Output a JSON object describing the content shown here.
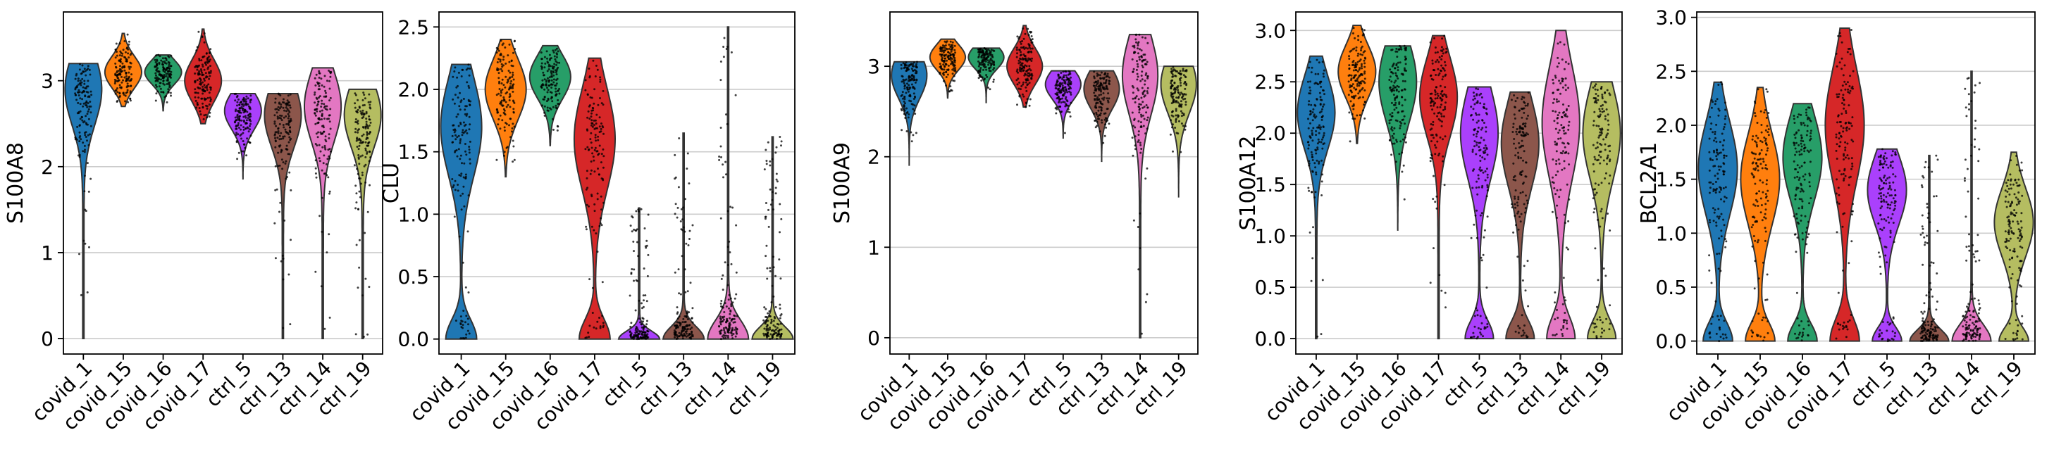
{
  "chart_data": [
    {
      "type": "violin",
      "ylabel": "S100A8",
      "yticks": [
        0,
        1,
        2,
        3
      ],
      "ytick_labels": [
        "0",
        "1",
        "2",
        "3"
      ],
      "ylim": [
        -0.18,
        3.8
      ],
      "grid": "horizontal",
      "categories": [
        "covid_1",
        "covid_15",
        "covid_16",
        "covid_17",
        "ctrl_5",
        "ctrl_13",
        "ctrl_14",
        "ctrl_19"
      ],
      "violins": [
        {
          "category": "covid_1",
          "color": "#1f77b4",
          "min": 0.0,
          "max": 3.2,
          "mode": 2.9,
          "shape": "body-tail"
        },
        {
          "category": "covid_15",
          "color": "#ff7f0e",
          "min": 2.7,
          "max": 3.55,
          "mode": 3.1,
          "shape": "body"
        },
        {
          "category": "covid_16",
          "color": "#279e68",
          "min": 2.65,
          "max": 3.3,
          "mode": 3.1,
          "shape": "body"
        },
        {
          "category": "covid_17",
          "color": "#d62728",
          "min": 2.5,
          "max": 3.6,
          "mode": 3.0,
          "shape": "body"
        },
        {
          "category": "ctrl_5",
          "color": "#aa40fc",
          "min": 1.85,
          "max": 2.85,
          "mode": 2.65,
          "shape": "body"
        },
        {
          "category": "ctrl_13",
          "color": "#8c564b",
          "min": 0.0,
          "max": 2.85,
          "mode": 2.6,
          "shape": "body-tail"
        },
        {
          "category": "ctrl_14",
          "color": "#e377c2",
          "min": 0.0,
          "max": 3.15,
          "mode": 2.7,
          "shape": "body-tail"
        },
        {
          "category": "ctrl_19",
          "color": "#b5bd61",
          "min": 0.0,
          "max": 2.9,
          "mode": 2.6,
          "shape": "body-tail"
        }
      ]
    },
    {
      "type": "violin",
      "ylabel": "CLU",
      "yticks": [
        0.0,
        0.5,
        1.0,
        1.5,
        2.0,
        2.5
      ],
      "ytick_labels": [
        "0.0",
        "0.5",
        "1.0",
        "1.5",
        "2.0",
        "2.5"
      ],
      "ylim": [
        -0.12,
        2.62
      ],
      "grid": "horizontal",
      "categories": [
        "covid_1",
        "covid_15",
        "covid_16",
        "covid_17",
        "ctrl_5",
        "ctrl_13",
        "ctrl_14",
        "ctrl_19"
      ],
      "violins": [
        {
          "category": "covid_1",
          "color": "#1f77b4",
          "min": 0.0,
          "max": 2.2,
          "mode": 1.7,
          "shape": "bimodal"
        },
        {
          "category": "covid_15",
          "color": "#ff7f0e",
          "min": 1.3,
          "max": 2.4,
          "mode": 2.0,
          "shape": "body"
        },
        {
          "category": "covid_16",
          "color": "#279e68",
          "min": 1.55,
          "max": 2.35,
          "mode": 2.1,
          "shape": "body"
        },
        {
          "category": "covid_17",
          "color": "#d62728",
          "min": 0.0,
          "max": 2.25,
          "mode": 1.6,
          "shape": "bimodal"
        },
        {
          "category": "ctrl_5",
          "color": "#aa40fc",
          "min": 0.0,
          "max": 1.05,
          "mode": 0.0,
          "shape": "base"
        },
        {
          "category": "ctrl_13",
          "color": "#8c564b",
          "min": 0.0,
          "max": 1.65,
          "mode": 0.0,
          "shape": "base"
        },
        {
          "category": "ctrl_14",
          "color": "#e377c2",
          "min": 0.0,
          "max": 2.5,
          "mode": 0.0,
          "shape": "base"
        },
        {
          "category": "ctrl_19",
          "color": "#b5bd61",
          "min": 0.0,
          "max": 1.62,
          "mode": 0.0,
          "shape": "base"
        }
      ]
    },
    {
      "type": "violin",
      "ylabel": "S100A9",
      "yticks": [
        0,
        1,
        2,
        3
      ],
      "ytick_labels": [
        "0",
        "1",
        "2",
        "3"
      ],
      "ylim": [
        -0.18,
        3.6
      ],
      "grid": "horizontal",
      "categories": [
        "covid_1",
        "covid_15",
        "covid_16",
        "covid_17",
        "ctrl_5",
        "ctrl_13",
        "ctrl_14",
        "ctrl_19"
      ],
      "violins": [
        {
          "category": "covid_1",
          "color": "#1f77b4",
          "min": 1.9,
          "max": 3.05,
          "mode": 2.9,
          "shape": "body"
        },
        {
          "category": "covid_15",
          "color": "#ff7f0e",
          "min": 2.65,
          "max": 3.3,
          "mode": 3.1,
          "shape": "body"
        },
        {
          "category": "covid_16",
          "color": "#279e68",
          "min": 2.6,
          "max": 3.2,
          "mode": 3.1,
          "shape": "body"
        },
        {
          "category": "covid_17",
          "color": "#d62728",
          "min": 2.55,
          "max": 3.45,
          "mode": 3.0,
          "shape": "body"
        },
        {
          "category": "ctrl_5",
          "color": "#aa40fc",
          "min": 2.2,
          "max": 2.95,
          "mode": 2.8,
          "shape": "body"
        },
        {
          "category": "ctrl_13",
          "color": "#8c564b",
          "min": 1.95,
          "max": 2.95,
          "mode": 2.75,
          "shape": "body"
        },
        {
          "category": "ctrl_14",
          "color": "#e377c2",
          "min": 0.0,
          "max": 3.35,
          "mode": 2.9,
          "shape": "body-tail"
        },
        {
          "category": "ctrl_19",
          "color": "#b5bd61",
          "min": 1.55,
          "max": 3.0,
          "mode": 2.8,
          "shape": "body"
        }
      ]
    },
    {
      "type": "violin",
      "ylabel": "S100A12",
      "yticks": [
        0.0,
        0.5,
        1.0,
        1.5,
        2.0,
        2.5,
        3.0
      ],
      "ytick_labels": [
        "0.0",
        "0.5",
        "1.0",
        "1.5",
        "2.0",
        "2.5",
        "3.0"
      ],
      "ylim": [
        -0.15,
        3.18
      ],
      "grid": "horizontal",
      "categories": [
        "covid_1",
        "covid_15",
        "covid_16",
        "covid_17",
        "ctrl_5",
        "ctrl_13",
        "ctrl_14",
        "ctrl_19"
      ],
      "violins": [
        {
          "category": "covid_1",
          "color": "#1f77b4",
          "min": 0.0,
          "max": 2.75,
          "mode": 2.2,
          "shape": "body-tail"
        },
        {
          "category": "covid_15",
          "color": "#ff7f0e",
          "min": 1.9,
          "max": 3.05,
          "mode": 2.6,
          "shape": "body"
        },
        {
          "category": "covid_16",
          "color": "#279e68",
          "min": 1.05,
          "max": 2.85,
          "mode": 2.5,
          "shape": "body"
        },
        {
          "category": "covid_17",
          "color": "#d62728",
          "min": 0.0,
          "max": 2.95,
          "mode": 2.35,
          "shape": "body-tail"
        },
        {
          "category": "ctrl_5",
          "color": "#aa40fc",
          "min": 0.0,
          "max": 2.45,
          "mode": 2.0,
          "shape": "bimodal"
        },
        {
          "category": "ctrl_13",
          "color": "#8c564b",
          "min": 0.0,
          "max": 2.4,
          "mode": 1.9,
          "shape": "bimodal"
        },
        {
          "category": "ctrl_14",
          "color": "#e377c2",
          "min": 0.0,
          "max": 3.0,
          "mode": 2.1,
          "shape": "bimodal"
        },
        {
          "category": "ctrl_19",
          "color": "#b5bd61",
          "min": 0.0,
          "max": 2.5,
          "mode": 2.0,
          "shape": "bimodal"
        }
      ]
    },
    {
      "type": "violin",
      "ylabel": "BCL2A1",
      "yticks": [
        0.0,
        0.5,
        1.0,
        1.5,
        2.0,
        2.5,
        3.0
      ],
      "ytick_labels": [
        "0.0",
        "0.5",
        "1.0",
        "1.5",
        "2.0",
        "2.5",
        "3.0"
      ],
      "ylim": [
        -0.12,
        3.05
      ],
      "grid": "horizontal",
      "categories": [
        "covid_1",
        "covid_15",
        "covid_16",
        "covid_17",
        "ctrl_5",
        "ctrl_13",
        "ctrl_14",
        "ctrl_19"
      ],
      "violins": [
        {
          "category": "covid_1",
          "color": "#1f77b4",
          "min": 0.0,
          "max": 2.4,
          "mode": 1.6,
          "shape": "bimodal"
        },
        {
          "category": "covid_15",
          "color": "#ff7f0e",
          "min": 0.0,
          "max": 2.35,
          "mode": 1.5,
          "shape": "bimodal"
        },
        {
          "category": "covid_16",
          "color": "#279e68",
          "min": 0.0,
          "max": 2.2,
          "mode": 1.7,
          "shape": "bimodal"
        },
        {
          "category": "covid_17",
          "color": "#d62728",
          "min": 0.0,
          "max": 2.9,
          "mode": 2.0,
          "shape": "bimodal"
        },
        {
          "category": "ctrl_5",
          "color": "#aa40fc",
          "min": 0.0,
          "max": 1.78,
          "mode": 1.4,
          "shape": "bimodal"
        },
        {
          "category": "ctrl_13",
          "color": "#8c564b",
          "min": 0.0,
          "max": 1.72,
          "mode": 0.0,
          "shape": "base"
        },
        {
          "category": "ctrl_14",
          "color": "#e377c2",
          "min": 0.0,
          "max": 2.5,
          "mode": 0.0,
          "shape": "base"
        },
        {
          "category": "ctrl_19",
          "color": "#b5bd61",
          "min": 0.0,
          "max": 1.75,
          "mode": 1.1,
          "shape": "bimodal"
        }
      ]
    }
  ],
  "colors": {
    "axis": "#000000",
    "grid": "#cccccc",
    "violin_edge": "#333333",
    "points": "#000000"
  }
}
